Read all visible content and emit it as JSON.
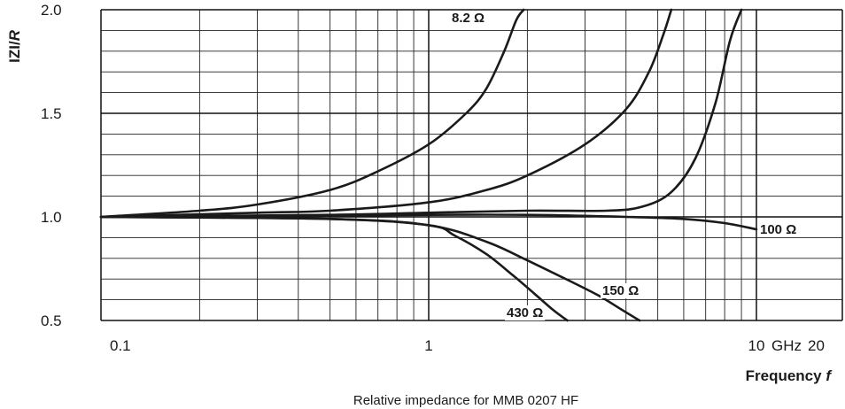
{
  "chart_data": {
    "type": "line",
    "title": "",
    "caption": "Relative impedance for MMB 0207 HF",
    "xlabel": "Frequency",
    "xlabel_var": "f",
    "ylabel": "IZI/",
    "ylabel_var": "R",
    "x_scale": "log",
    "xlim": [
      0.1,
      10
    ],
    "ylim": [
      0.5,
      2.0
    ],
    "grid": true,
    "x_ticks": [
      {
        "value": 0.1,
        "label": "0.1"
      },
      {
        "value": 1,
        "label": "1"
      },
      {
        "value": 10,
        "label": "10"
      }
    ],
    "x_unit_label": "GHz",
    "x_extra_label": "20",
    "y_ticks": [
      {
        "value": 0.5,
        "label": "0.5"
      },
      {
        "value": 1.0,
        "label": "1.0"
      },
      {
        "value": 1.5,
        "label": "1.5"
      },
      {
        "value": 2.0,
        "label": "2.0"
      }
    ],
    "series": [
      {
        "name": "8.2 Ω",
        "x": [
          0.1,
          0.2,
          0.3,
          0.5,
          0.7,
          1.0,
          1.3,
          1.5,
          1.7,
          1.85,
          1.95
        ],
        "y": [
          1.0,
          1.03,
          1.06,
          1.13,
          1.22,
          1.35,
          1.5,
          1.62,
          1.8,
          1.95,
          2.0
        ]
      },
      {
        "name": "",
        "x": [
          0.1,
          0.3,
          0.5,
          1.0,
          1.5,
          2.0,
          3.0,
          4.0,
          4.7,
          5.2,
          5.5
        ],
        "y": [
          1.0,
          1.02,
          1.03,
          1.07,
          1.13,
          1.2,
          1.35,
          1.52,
          1.7,
          1.88,
          2.0
        ]
      },
      {
        "name": "",
        "x": [
          0.1,
          0.5,
          1.0,
          2.0,
          3.5,
          4.5,
          5.5,
          6.5,
          7.5,
          8.3,
          9.0
        ],
        "y": [
          1.0,
          1.01,
          1.02,
          1.03,
          1.03,
          1.05,
          1.12,
          1.28,
          1.55,
          1.85,
          2.0
        ]
      },
      {
        "name": "100 Ω",
        "x": [
          0.1,
          0.5,
          1.0,
          2.0,
          4.0,
          6.0,
          8.0,
          10.0
        ],
        "y": [
          1.0,
          1.005,
          1.01,
          1.01,
          1.0,
          0.99,
          0.97,
          0.94
        ]
      },
      {
        "name": "150 Ω",
        "x": [
          0.1,
          0.5,
          1.0,
          1.5,
          2.0,
          2.7,
          3.3,
          3.9,
          4.4
        ],
        "y": [
          1.0,
          0.99,
          0.96,
          0.88,
          0.79,
          0.69,
          0.62,
          0.55,
          0.5
        ]
      },
      {
        "name": "430 Ω",
        "x": [
          0.1,
          0.5,
          1.0,
          1.2,
          1.5,
          1.8,
          2.1,
          2.4,
          2.65
        ],
        "y": [
          1.0,
          0.99,
          0.96,
          0.91,
          0.82,
          0.72,
          0.63,
          0.55,
          0.5
        ]
      }
    ]
  }
}
